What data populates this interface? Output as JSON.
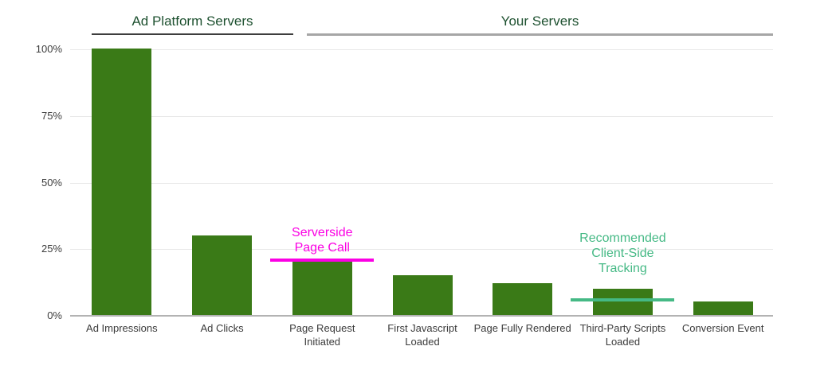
{
  "chart_data": {
    "type": "bar",
    "title": "",
    "xlabel": "",
    "ylabel": "",
    "unit": "%",
    "ylim": [
      0,
      100
    ],
    "grid": true,
    "legend": "none",
    "bar_color": "#3a7a17",
    "axis_label_color": "#3b3b3b",
    "categories": [
      "Ad Impressions",
      "Ad Clicks",
      "Page Request Initiated",
      "First Javascript Loaded",
      "Page Fully Rendered",
      "Third-Party Scripts Loaded",
      "Conversion Event"
    ],
    "values": [
      100,
      30,
      20,
      15,
      12,
      10,
      5
    ],
    "yticks": [
      {
        "value": 0,
        "label": "0%"
      },
      {
        "value": 25,
        "label": "25%"
      },
      {
        "value": 50,
        "label": "50%"
      },
      {
        "value": 75,
        "label": "75%"
      },
      {
        "value": 100,
        "label": "100%"
      }
    ],
    "groups": [
      {
        "label": "Ad Platform Servers",
        "from": "Ad Impressions",
        "to": "Ad Clicks",
        "underline_color": "#3d3d3d",
        "text_color": "#1e5130"
      },
      {
        "label": "Your Servers",
        "from": "Page Request Initiated",
        "to": "Conversion Event",
        "underline_color": "#a6a6a6",
        "text_color": "#1e5130"
      }
    ],
    "annotations": [
      {
        "name": "serverside-page-call",
        "text": "Serverside\nPage Call",
        "color": "#fb00e4",
        "category": "Page Request Initiated",
        "category_index": 2,
        "line_value_pct": 21
      },
      {
        "name": "recommended-client-side-tracking",
        "text": "Recommended\nClient-Side\nTracking",
        "color": "#45b985",
        "category": "Third-Party Scripts Loaded",
        "category_index": 5,
        "line_value_pct": 6
      }
    ]
  }
}
